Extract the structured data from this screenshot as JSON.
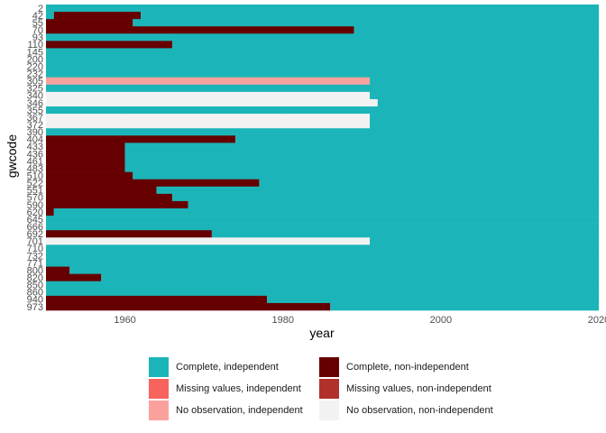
{
  "chart_data": {
    "type": "timeline",
    "xlabel": "year",
    "ylabel": "gwcode",
    "xlim": [
      1950,
      2020
    ],
    "x_ticks": [
      "1960",
      "1980",
      "2000",
      "2020"
    ],
    "y_ticks": [
      "2",
      "42",
      "55",
      "70",
      "93",
      "110",
      "145",
      "200",
      "220",
      "232",
      "305",
      "325",
      "340",
      "346",
      "355",
      "367",
      "372",
      "390",
      "404",
      "433",
      "436",
      "461",
      "483",
      "510",
      "522",
      "551",
      "570",
      "590",
      "620",
      "645",
      "666",
      "692",
      "701",
      "710",
      "732",
      "771",
      "800",
      "820",
      "850",
      "860",
      "940",
      "973"
    ],
    "legend": [
      {
        "label": "Complete, independent",
        "color": "#1bb5b9"
      },
      {
        "label": "Missing values, independent",
        "color": "#f8635d"
      },
      {
        "label": "No observation, independent",
        "color": "#fba19d"
      },
      {
        "label": "Complete, non-independent",
        "color": "#660000"
      },
      {
        "label": "Missing values, non-independent",
        "color": "#b0302b"
      },
      {
        "label": "No observation, non-independent",
        "color": "#f2f2f2"
      }
    ],
    "status_colors": {
      "ci": "#1bb5b9",
      "mi": "#f8635d",
      "ni": "#fba19d",
      "cn": "#660000",
      "mn": "#b0302b",
      "nn": "#f2f2f2"
    },
    "rows": [
      {
        "gwcode": "2",
        "segments": [
          {
            "start": 1950,
            "end": 2020,
            "status": "ci"
          }
        ]
      },
      {
        "gwcode": "42",
        "segments": [
          {
            "start": 1950,
            "end": 1951,
            "status": "ci"
          },
          {
            "start": 1951,
            "end": 1962,
            "status": "cn"
          },
          {
            "start": 1962,
            "end": 2020,
            "status": "ci"
          }
        ]
      },
      {
        "gwcode": "55",
        "segments": [
          {
            "start": 1950,
            "end": 1961,
            "status": "cn"
          },
          {
            "start": 1961,
            "end": 2020,
            "status": "ci"
          }
        ]
      },
      {
        "gwcode": "70",
        "segments": [
          {
            "start": 1950,
            "end": 1989,
            "status": "cn"
          },
          {
            "start": 1989,
            "end": 2020,
            "status": "ci"
          }
        ]
      },
      {
        "gwcode": "93",
        "segments": [
          {
            "start": 1950,
            "end": 2020,
            "status": "ci"
          }
        ]
      },
      {
        "gwcode": "110",
        "segments": [
          {
            "start": 1950,
            "end": 1966,
            "status": "cn"
          },
          {
            "start": 1966,
            "end": 2020,
            "status": "ci"
          }
        ]
      },
      {
        "gwcode": "145",
        "segments": [
          {
            "start": 1950,
            "end": 2020,
            "status": "ci"
          }
        ]
      },
      {
        "gwcode": "200",
        "segments": [
          {
            "start": 1950,
            "end": 2020,
            "status": "ci"
          }
        ]
      },
      {
        "gwcode": "220",
        "segments": [
          {
            "start": 1950,
            "end": 2020,
            "status": "ci"
          }
        ]
      },
      {
        "gwcode": "232",
        "segments": [
          {
            "start": 1950,
            "end": 2020,
            "status": "ci"
          }
        ]
      },
      {
        "gwcode": "305",
        "segments": [
          {
            "start": 1950,
            "end": 1991,
            "status": "ni"
          },
          {
            "start": 1991,
            "end": 2020,
            "status": "ci"
          }
        ]
      },
      {
        "gwcode": "325",
        "segments": [
          {
            "start": 1950,
            "end": 1993,
            "status": "ci"
          },
          {
            "start": 1993,
            "end": 2020,
            "status": "ci"
          }
        ]
      },
      {
        "gwcode": "340",
        "segments": [
          {
            "start": 1950,
            "end": 1991,
            "status": "nn"
          },
          {
            "start": 1991,
            "end": 2020,
            "status": "ci"
          }
        ]
      },
      {
        "gwcode": "346",
        "segments": [
          {
            "start": 1950,
            "end": 1992,
            "status": "nn"
          },
          {
            "start": 1992,
            "end": 2020,
            "status": "ci"
          }
        ]
      },
      {
        "gwcode": "355",
        "segments": [
          {
            "start": 1950,
            "end": 2020,
            "status": "ci"
          }
        ]
      },
      {
        "gwcode": "367",
        "segments": [
          {
            "start": 1950,
            "end": 1991,
            "status": "nn"
          },
          {
            "start": 1991,
            "end": 2020,
            "status": "ci"
          }
        ]
      },
      {
        "gwcode": "372",
        "segments": [
          {
            "start": 1950,
            "end": 1991,
            "status": "nn"
          },
          {
            "start": 1991,
            "end": 2020,
            "status": "ci"
          }
        ]
      },
      {
        "gwcode": "390",
        "segments": [
          {
            "start": 1950,
            "end": 2020,
            "status": "ci"
          }
        ]
      },
      {
        "gwcode": "404",
        "segments": [
          {
            "start": 1950,
            "end": 1974,
            "status": "cn"
          },
          {
            "start": 1974,
            "end": 2020,
            "status": "ci"
          }
        ]
      },
      {
        "gwcode": "433",
        "segments": [
          {
            "start": 1950,
            "end": 1960,
            "status": "cn"
          },
          {
            "start": 1960,
            "end": 2020,
            "status": "ci"
          }
        ]
      },
      {
        "gwcode": "436",
        "segments": [
          {
            "start": 1950,
            "end": 1960,
            "status": "cn"
          },
          {
            "start": 1960,
            "end": 2020,
            "status": "ci"
          }
        ]
      },
      {
        "gwcode": "461",
        "segments": [
          {
            "start": 1950,
            "end": 1960,
            "status": "cn"
          },
          {
            "start": 1960,
            "end": 2020,
            "status": "ci"
          }
        ]
      },
      {
        "gwcode": "483",
        "segments": [
          {
            "start": 1950,
            "end": 1960,
            "status": "cn"
          },
          {
            "start": 1960,
            "end": 2020,
            "status": "ci"
          }
        ]
      },
      {
        "gwcode": "510",
        "segments": [
          {
            "start": 1950,
            "end": 1961,
            "status": "cn"
          },
          {
            "start": 1961,
            "end": 2020,
            "status": "ci"
          }
        ]
      },
      {
        "gwcode": "522",
        "segments": [
          {
            "start": 1950,
            "end": 1977,
            "status": "cn"
          },
          {
            "start": 1977,
            "end": 2020,
            "status": "ci"
          }
        ]
      },
      {
        "gwcode": "551",
        "segments": [
          {
            "start": 1950,
            "end": 1964,
            "status": "cn"
          },
          {
            "start": 1964,
            "end": 2020,
            "status": "ci"
          }
        ]
      },
      {
        "gwcode": "570",
        "segments": [
          {
            "start": 1950,
            "end": 1966,
            "status": "cn"
          },
          {
            "start": 1966,
            "end": 2020,
            "status": "ci"
          }
        ]
      },
      {
        "gwcode": "590",
        "segments": [
          {
            "start": 1950,
            "end": 1968,
            "status": "cn"
          },
          {
            "start": 1968,
            "end": 2020,
            "status": "ci"
          }
        ]
      },
      {
        "gwcode": "620",
        "segments": [
          {
            "start": 1950,
            "end": 1951,
            "status": "cn"
          },
          {
            "start": 1951,
            "end": 2020,
            "status": "ci"
          }
        ]
      },
      {
        "gwcode": "645",
        "segments": [
          {
            "start": 1950,
            "end": 2020,
            "status": "ci"
          }
        ]
      },
      {
        "gwcode": "666",
        "segments": [
          {
            "start": 1950,
            "end": 2020,
            "status": "ci"
          }
        ]
      },
      {
        "gwcode": "692",
        "segments": [
          {
            "start": 1950,
            "end": 1971,
            "status": "cn"
          },
          {
            "start": 1971,
            "end": 2020,
            "status": "ci"
          }
        ]
      },
      {
        "gwcode": "701",
        "segments": [
          {
            "start": 1950,
            "end": 1991,
            "status": "nn"
          },
          {
            "start": 1991,
            "end": 2020,
            "status": "ci"
          }
        ]
      },
      {
        "gwcode": "710",
        "segments": [
          {
            "start": 1950,
            "end": 2020,
            "status": "ci"
          }
        ]
      },
      {
        "gwcode": "732",
        "segments": [
          {
            "start": 1950,
            "end": 2020,
            "status": "ci"
          }
        ]
      },
      {
        "gwcode": "771",
        "segments": [
          {
            "start": 1950,
            "end": 2020,
            "status": "ci"
          }
        ]
      },
      {
        "gwcode": "800",
        "segments": [
          {
            "start": 1950,
            "end": 1953,
            "status": "cn"
          },
          {
            "start": 1953,
            "end": 2020,
            "status": "ci"
          }
        ]
      },
      {
        "gwcode": "820",
        "segments": [
          {
            "start": 1950,
            "end": 1957,
            "status": "cn"
          },
          {
            "start": 1957,
            "end": 2020,
            "status": "ci"
          }
        ]
      },
      {
        "gwcode": "850",
        "segments": [
          {
            "start": 1950,
            "end": 1950,
            "status": "cn"
          },
          {
            "start": 1950,
            "end": 2020,
            "status": "ci"
          }
        ]
      },
      {
        "gwcode": "860",
        "segments": [
          {
            "start": 1950,
            "end": 2020,
            "status": "ci"
          }
        ]
      },
      {
        "gwcode": "940",
        "segments": [
          {
            "start": 1950,
            "end": 1978,
            "status": "cn"
          },
          {
            "start": 1978,
            "end": 2020,
            "status": "ci"
          }
        ]
      },
      {
        "gwcode": "973",
        "segments": [
          {
            "start": 1950,
            "end": 1986,
            "status": "cn"
          },
          {
            "start": 1986,
            "end": 2020,
            "status": "ci"
          }
        ]
      }
    ]
  }
}
